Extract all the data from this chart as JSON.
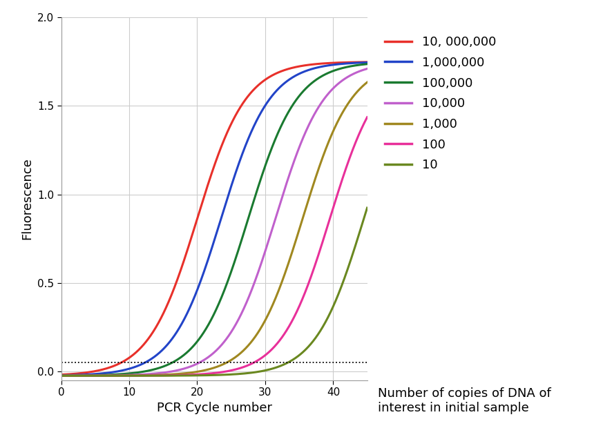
{
  "curves": [
    {
      "label": "10, 000,000",
      "color": "#e8302a",
      "midpoint": 20.0,
      "steepness": 0.28
    },
    {
      "label": "1,000,000",
      "color": "#2244c8",
      "midpoint": 23.5,
      "steepness": 0.28
    },
    {
      "label": "100,000",
      "color": "#1a7a30",
      "midpoint": 27.5,
      "steepness": 0.28
    },
    {
      "label": "10,000",
      "color": "#c060cc",
      "midpoint": 31.5,
      "steepness": 0.28
    },
    {
      "label": "1,000",
      "color": "#a08820",
      "midpoint": 35.5,
      "steepness": 0.28
    },
    {
      "label": "100",
      "color": "#e8309a",
      "midpoint": 39.5,
      "steepness": 0.28
    },
    {
      "label": "10",
      "color": "#6a8820",
      "midpoint": 44.5,
      "steepness": 0.28
    }
  ],
  "x_min": 0,
  "x_max": 45,
  "y_min": -0.05,
  "y_max": 2.0,
  "y_plateau": 1.75,
  "baseline": -0.025,
  "threshold": 0.05,
  "xlabel": "PCR Cycle number",
  "ylabel": "Fluorescence",
  "xticks": [
    0,
    10,
    20,
    30,
    40
  ],
  "yticks": [
    0,
    0.5,
    1,
    1.5,
    2
  ],
  "legend_entries_label": "Number of copies of DNA of\ninterest in initial sample",
  "background_color": "#ffffff",
  "grid_color": "#cccccc",
  "xlabel_fontsize": 13,
  "ylabel_fontsize": 13,
  "tick_fontsize": 11,
  "legend_fontsize": 13,
  "legend_title_fontsize": 13,
  "linewidth": 2.2
}
